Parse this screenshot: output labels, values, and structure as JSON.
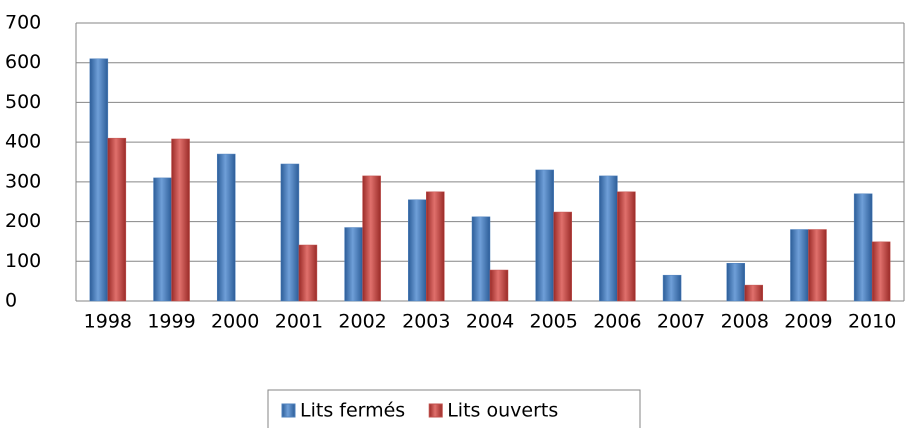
{
  "chart_data": {
    "type": "bar",
    "categories": [
      "1998",
      "1999",
      "2000",
      "2001",
      "2002",
      "2003",
      "2004",
      "2005",
      "2006",
      "2007",
      "2008",
      "2009",
      "2010"
    ],
    "series": [
      {
        "name": "Lits fermés",
        "color": "#4f81bd",
        "values": [
          610,
          310,
          370,
          345,
          185,
          255,
          212,
          330,
          315,
          65,
          95,
          180,
          270
        ]
      },
      {
        "name": "Lits ouverts",
        "color": "#c0504d",
        "values": [
          410,
          408,
          0,
          141,
          315,
          275,
          78,
          224,
          275,
          0,
          40,
          180,
          149
        ]
      }
    ],
    "ylim": [
      0,
      700
    ],
    "yticks": [
      0,
      100,
      200,
      300,
      400,
      500,
      600,
      700
    ],
    "grid": true,
    "legend": "bottom"
  }
}
